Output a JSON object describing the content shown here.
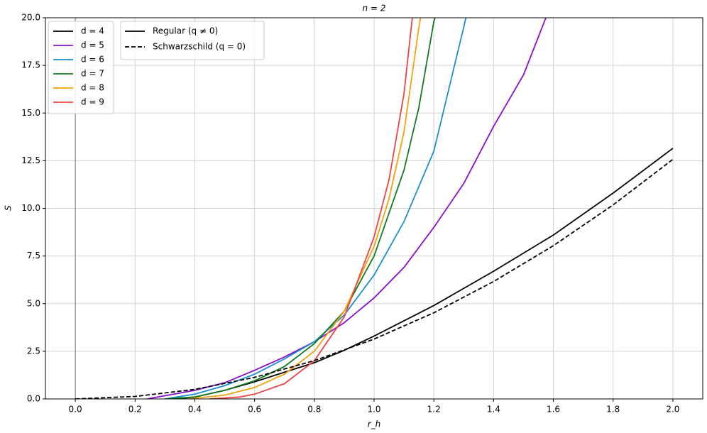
{
  "chart_data": {
    "type": "line",
    "title": "n = 2",
    "x_label": "r_h",
    "y_label": "S",
    "xlim": [
      -0.1,
      2.1
    ],
    "ylim": [
      0,
      20
    ],
    "xticks": [
      {
        "value": 0,
        "label": "0.0"
      },
      {
        "value": 0.2,
        "label": "0.2"
      },
      {
        "value": 0.4,
        "label": "0.4"
      },
      {
        "value": 0.6,
        "label": "0.6"
      },
      {
        "value": 0.8,
        "label": "0.8"
      },
      {
        "value": 1,
        "label": "1.0"
      },
      {
        "value": 1.2,
        "label": "1.2"
      },
      {
        "value": 1.4,
        "label": "1.4"
      },
      {
        "value": 1.6,
        "label": "1.6"
      },
      {
        "value": 1.8,
        "label": "1.8"
      },
      {
        "value": 2,
        "label": "2.0"
      }
    ],
    "yticks": [
      {
        "value": 0,
        "label": "0.0"
      },
      2.5,
      {
        "value": 5,
        "label": "5.0"
      },
      7.5,
      {
        "value": 10,
        "label": "10.0"
      },
      12.5,
      {
        "value": 15,
        "label": "15.0"
      },
      17.5,
      {
        "value": 20,
        "label": "20.0"
      }
    ],
    "grid": true,
    "axvline": 0,
    "series": [
      {
        "name": "d = 4",
        "color": "#000000",
        "dashed": false,
        "x": [
          0.33,
          0.4,
          0.5,
          0.6,
          0.7,
          0.8,
          0.9,
          1.0,
          1.2,
          1.4,
          1.6,
          1.8,
          2.0
        ],
        "values": [
          0,
          0.1,
          0.45,
          0.9,
          1.4,
          1.9,
          2.55,
          3.3,
          4.9,
          6.7,
          8.6,
          10.8,
          13.15
        ]
      },
      {
        "name": "d = 5",
        "color": "#8a0fcc",
        "dashed": false,
        "x": [
          0.24,
          0.4,
          0.5,
          0.6,
          0.7,
          0.8,
          0.9,
          1.0,
          1.1,
          1.2,
          1.3,
          1.4,
          1.5,
          1.58
        ],
        "values": [
          0,
          0.45,
          0.85,
          1.5,
          2.2,
          3.0,
          4.0,
          5.3,
          6.9,
          9.0,
          11.3,
          14.3,
          17.0,
          20.2
        ]
      },
      {
        "name": "d = 6",
        "color": "#1a8fd0",
        "dashed": false,
        "x": [
          0.3,
          0.4,
          0.5,
          0.6,
          0.7,
          0.8,
          0.9,
          1.0,
          1.1,
          1.2,
          1.3,
          1.31
        ],
        "values": [
          0,
          0.25,
          0.7,
          1.3,
          2.1,
          3.0,
          4.4,
          6.5,
          9.3,
          13.0,
          19.5,
          20.2
        ]
      },
      {
        "name": "d = 7",
        "color": "#117a20",
        "dashed": false,
        "x": [
          0.3,
          0.4,
          0.5,
          0.6,
          0.7,
          0.8,
          0.9,
          1.0,
          1.1,
          1.15,
          1.2,
          1.21
        ],
        "values": [
          0,
          0.1,
          0.45,
          0.95,
          1.7,
          2.9,
          4.6,
          7.5,
          12,
          15.3,
          19.8,
          20.3
        ]
      },
      {
        "name": "d = 8",
        "color": "#f2a20c",
        "dashed": false,
        "x": [
          0.38,
          0.5,
          0.6,
          0.7,
          0.8,
          0.9,
          1.0,
          1.05,
          1.1,
          1.15,
          1.16
        ],
        "values": [
          0,
          0.2,
          0.6,
          1.3,
          2.5,
          4.6,
          8.0,
          10.5,
          14,
          19.5,
          20.4
        ]
      },
      {
        "name": "d = 9",
        "color": "#ee4444",
        "dashed": false,
        "x": [
          0.45,
          0.55,
          0.6,
          0.7,
          0.8,
          0.9,
          1.0,
          1.05,
          1.1,
          1.13
        ],
        "values": [
          0,
          0.1,
          0.25,
          0.8,
          2.0,
          4.3,
          8.5,
          11.5,
          16,
          20.3
        ]
      },
      {
        "color": "#000000",
        "dashed": true,
        "x": [
          0,
          0.2,
          0.4,
          0.6,
          0.8,
          1.0,
          1.2,
          1.4,
          1.6,
          1.8,
          2.0
        ],
        "values": [
          0,
          0.13,
          0.5,
          1.13,
          2.01,
          3.14,
          4.52,
          6.16,
          8.04,
          10.18,
          12.57
        ]
      }
    ],
    "style_legend": [
      {
        "label": "Regular (q ≠ 0)",
        "dashed": false
      },
      {
        "label": "Schwarzschild (q = 0)",
        "dashed": true
      }
    ]
  }
}
